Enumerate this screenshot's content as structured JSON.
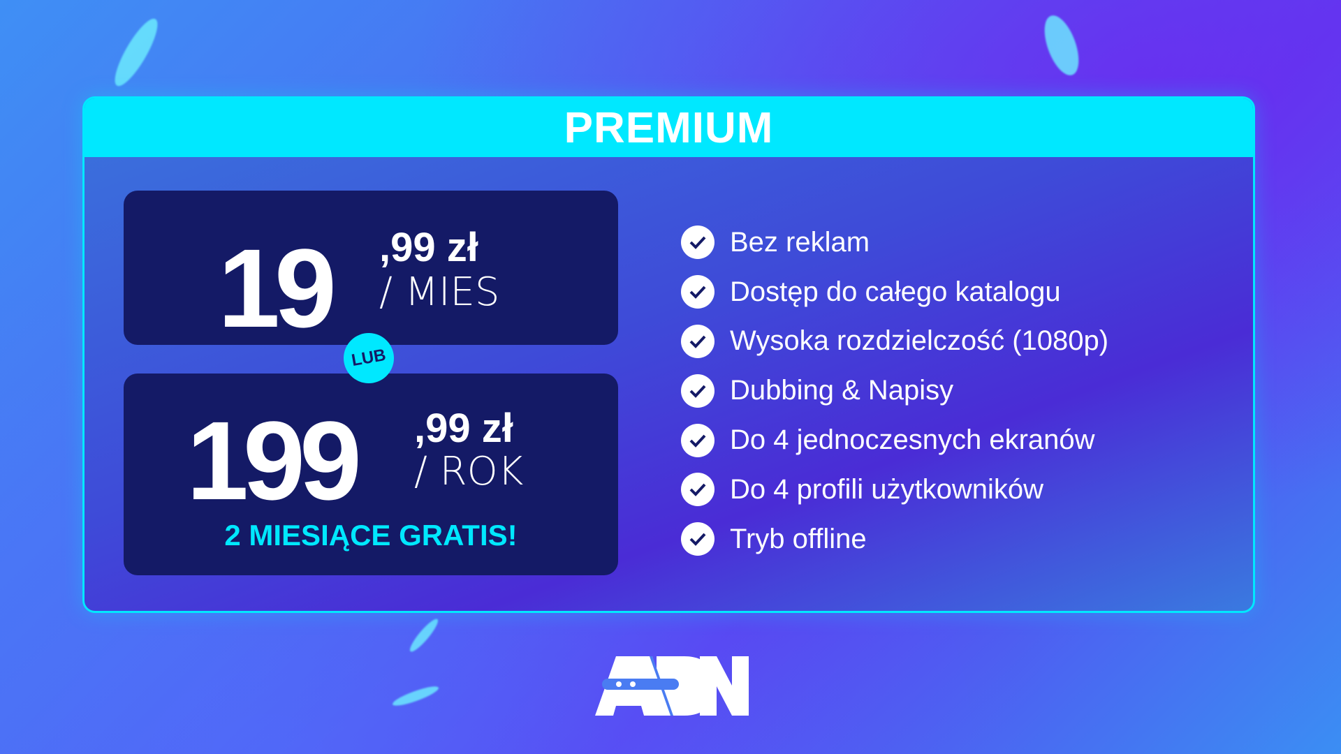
{
  "header": {
    "title": "PREMIUM"
  },
  "monthly": {
    "whole": "19",
    "cents": ",99 zł",
    "period": "/ MIES"
  },
  "separator": "LUB",
  "yearly": {
    "whole": "199",
    "cents": ",99 zł",
    "period": "/ ROK",
    "promo": "2 MIESIĄCE GRATIS!"
  },
  "features": [
    {
      "icon": "check-circle-icon",
      "label": "Bez reklam"
    },
    {
      "icon": "check-circle-icon",
      "label": "Dostęp do całego katalogu"
    },
    {
      "icon": "check-circle-icon",
      "label": "Wysoka rozdzielczość (1080p)"
    },
    {
      "icon": "check-circle-icon",
      "label": "Dubbing & Napisy"
    },
    {
      "icon": "check-circle-icon",
      "label": "Do 4 jednoczesnych ekranów"
    },
    {
      "icon": "check-circle-icon",
      "label": "Do 4 profili użytkowników"
    },
    {
      "icon": "check-circle-icon",
      "label": "Tryb offline"
    }
  ],
  "logo": {
    "text": "ADN"
  },
  "colors": {
    "accent": "#00e8ff",
    "panel": "#141a66",
    "text": "#ffffff"
  }
}
